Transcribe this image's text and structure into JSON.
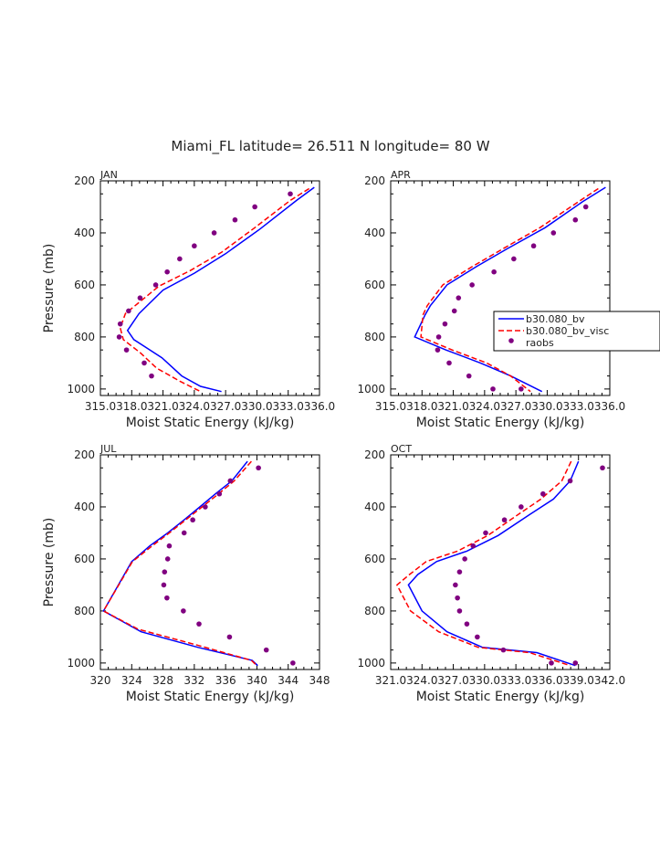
{
  "figure": {
    "title": "Miami_FL  latitude= 26.511 N longitude= 80 W"
  },
  "colors": {
    "model_bv": "#0000ff",
    "model_visc": "#ff0000",
    "raobs": "#800080",
    "axis": "#000000"
  },
  "legend": {
    "entries": [
      "b30.080_bv",
      "b30.080_bv_visc",
      "raobs"
    ]
  },
  "chart_data": [
    {
      "type": "line",
      "panel": "JAN",
      "xlabel": "Moist Static Energy (kJ/kg)",
      "ylabel": "Pressure (mb)",
      "xlim": [
        315,
        336
      ],
      "ylim": [
        1025,
        200
      ],
      "xticks": [
        315,
        318,
        321,
        324,
        327,
        330,
        333,
        336
      ],
      "xtick_labels": [
        "315.0",
        "318.0",
        "321.0",
        "324.0",
        "327.0",
        "330.0",
        "333.0",
        "336.0"
      ],
      "yticks": [
        200,
        400,
        600,
        800,
        1000
      ],
      "ytick_labels": [
        "200",
        "400",
        "600",
        "800",
        "1000"
      ],
      "series": [
        {
          "name": "b30.080_bv",
          "kind": "line",
          "x": [
            335.5,
            333.8,
            330.3,
            327.0,
            324.0,
            321.0,
            318.7,
            317.6,
            318.2,
            320.9,
            322.8,
            324.6,
            326.6
          ],
          "y": [
            225,
            275,
            385,
            480,
            555,
            620,
            710,
            775,
            810,
            880,
            950,
            990,
            1010
          ]
        },
        {
          "name": "b30.080_bv_visc",
          "kind": "line",
          "x": [
            335.0,
            333.2,
            329.8,
            326.6,
            323.6,
            320.6,
            317.4,
            316.9,
            317.2,
            318.8,
            320.4,
            322.6,
            324.6
          ],
          "y": [
            230,
            275,
            380,
            475,
            545,
            605,
            710,
            765,
            810,
            860,
            920,
            970,
            1010
          ]
        },
        {
          "name": "raobs",
          "kind": "points",
          "x": [
            333.2,
            329.8,
            327.9,
            325.9,
            324.0,
            322.6,
            321.4,
            320.3,
            318.8,
            317.7,
            316.9,
            316.8,
            317.5,
            319.2,
            319.9
          ],
          "y": [
            250,
            300,
            350,
            400,
            450,
            500,
            550,
            600,
            650,
            700,
            750,
            800,
            850,
            900,
            950
          ]
        }
      ]
    },
    {
      "type": "line",
      "panel": "APR",
      "xlabel": "Moist Static Energy (kJ/kg)",
      "ylabel": "",
      "xlim": [
        315,
        336
      ],
      "ylim": [
        1025,
        200
      ],
      "xticks": [
        315,
        318,
        321,
        324,
        327,
        330,
        333,
        336
      ],
      "xtick_labels": [
        "315.0",
        "318.0",
        "321.0",
        "324.0",
        "327.0",
        "330.0",
        "333.0",
        "336.0"
      ],
      "yticks": [
        200,
        400,
        600,
        800,
        1000
      ],
      "ytick_labels": [
        "200",
        "400",
        "600",
        "800",
        "1000"
      ],
      "series": [
        {
          "name": "b30.080_bv",
          "kind": "line",
          "x": [
            335.6,
            333.4,
            329.8,
            326.2,
            323.2,
            320.4,
            318.8,
            318.3,
            317.3,
            320.3,
            323.6,
            326.5,
            329.5
          ],
          "y": [
            225,
            280,
            380,
            460,
            530,
            600,
            680,
            715,
            800,
            850,
            900,
            950,
            1010
          ]
        },
        {
          "name": "b30.080_bv_visc",
          "kind": "line",
          "x": [
            334.9,
            333.0,
            329.3,
            325.8,
            322.8,
            320.0,
            318.5,
            318.1,
            317.9,
            320.9,
            324.2,
            326.5,
            328.4
          ],
          "y": [
            230,
            280,
            380,
            460,
            530,
            600,
            680,
            715,
            800,
            850,
            900,
            950,
            1010
          ]
        },
        {
          "name": "raobs",
          "kind": "points",
          "x": [
            336.2,
            333.7,
            332.7,
            330.6,
            328.7,
            326.8,
            324.9,
            322.8,
            321.5,
            321.1,
            320.2,
            319.6,
            319.5,
            320.6,
            322.5,
            324.8,
            327.5
          ],
          "y": [
            250,
            300,
            350,
            400,
            450,
            500,
            550,
            600,
            650,
            700,
            750,
            800,
            850,
            900,
            950,
            1000,
            1000
          ]
        }
      ]
    },
    {
      "type": "line",
      "panel": "JUL",
      "xlabel": "Moist Static Energy (kJ/kg)",
      "ylabel": "Pressure (mb)",
      "xlim": [
        320,
        348
      ],
      "ylim": [
        1025,
        200
      ],
      "xticks": [
        320,
        324,
        328,
        332,
        336,
        340,
        344,
        348
      ],
      "xtick_labels": [
        "320",
        "324",
        "328",
        "332",
        "336",
        "340",
        "344",
        "348"
      ],
      "yticks": [
        200,
        400,
        600,
        800,
        1000
      ],
      "ytick_labels": [
        "200",
        "400",
        "600",
        "800",
        "1000"
      ],
      "series": [
        {
          "name": "b30.080_bv",
          "kind": "line",
          "x": [
            338.8,
            336.8,
            334.7,
            332.7,
            330.7,
            328.6,
            326.3,
            324.0,
            320.4,
            325.2,
            332.5,
            339.4,
            340.1
          ],
          "y": [
            225,
            300,
            350,
            400,
            450,
            500,
            550,
            610,
            800,
            880,
            940,
            990,
            1010
          ]
        },
        {
          "name": "b30.080_bv_visc",
          "kind": "line",
          "x": [
            339.3,
            337.1,
            335.1,
            333.0,
            330.9,
            328.8,
            326.6,
            324.1,
            320.4,
            324.8,
            332.2,
            339.3,
            340.0
          ],
          "y": [
            225,
            300,
            350,
            400,
            450,
            500,
            550,
            610,
            800,
            870,
            930,
            990,
            1010
          ]
        },
        {
          "name": "raobs",
          "kind": "points",
          "x": [
            340.2,
            336.6,
            335.2,
            333.4,
            331.8,
            330.7,
            328.8,
            328.6,
            328.2,
            328.1,
            328.5,
            330.6,
            332.6,
            336.5,
            341.2,
            344.6
          ],
          "y": [
            250,
            300,
            350,
            400,
            450,
            500,
            550,
            600,
            650,
            700,
            750,
            800,
            850,
            900,
            950,
            1000
          ]
        }
      ]
    },
    {
      "type": "line",
      "panel": "OCT",
      "xlabel": "Moist Static Energy (kJ/kg)",
      "ylabel": "",
      "xlim": [
        321,
        342
      ],
      "ylim": [
        1025,
        200
      ],
      "xticks": [
        321,
        324,
        327,
        330,
        333,
        336,
        339,
        342
      ],
      "xtick_labels": [
        "321.0",
        "324.0",
        "327.0",
        "330.0",
        "333.0",
        "336.0",
        "339.0",
        "342.0"
      ],
      "yticks": [
        200,
        400,
        600,
        800,
        1000
      ],
      "ytick_labels": [
        "200",
        "400",
        "600",
        "800",
        "1000"
      ],
      "series": [
        {
          "name": "b30.080_bv",
          "kind": "line",
          "x": [
            339.0,
            338.2,
            336.6,
            334.3,
            331.3,
            328.3,
            325.4,
            323.6,
            322.7,
            324.0,
            326.4,
            329.8,
            335.0,
            338.7
          ],
          "y": [
            225,
            300,
            370,
            430,
            510,
            570,
            610,
            660,
            700,
            800,
            880,
            940,
            960,
            1010
          ]
        },
        {
          "name": "b30.080_bv_visc",
          "kind": "line",
          "x": [
            338.3,
            337.4,
            335.4,
            333.2,
            330.3,
            327.4,
            324.4,
            322.8,
            321.6,
            322.9,
            325.6,
            329.4,
            334.3,
            338.2
          ],
          "y": [
            225,
            300,
            370,
            430,
            510,
            570,
            610,
            660,
            700,
            800,
            880,
            940,
            960,
            1010
          ]
        },
        {
          "name": "raobs",
          "kind": "points",
          "x": [
            341.3,
            338.2,
            335.6,
            333.5,
            331.9,
            330.1,
            328.9,
            328.1,
            327.6,
            327.2,
            327.4,
            327.6,
            328.3,
            329.3,
            331.8,
            336.4,
            338.7
          ],
          "y": [
            250,
            300,
            350,
            400,
            450,
            500,
            550,
            600,
            650,
            700,
            750,
            800,
            850,
            900,
            950,
            1000,
            1000
          ]
        }
      ]
    }
  ]
}
